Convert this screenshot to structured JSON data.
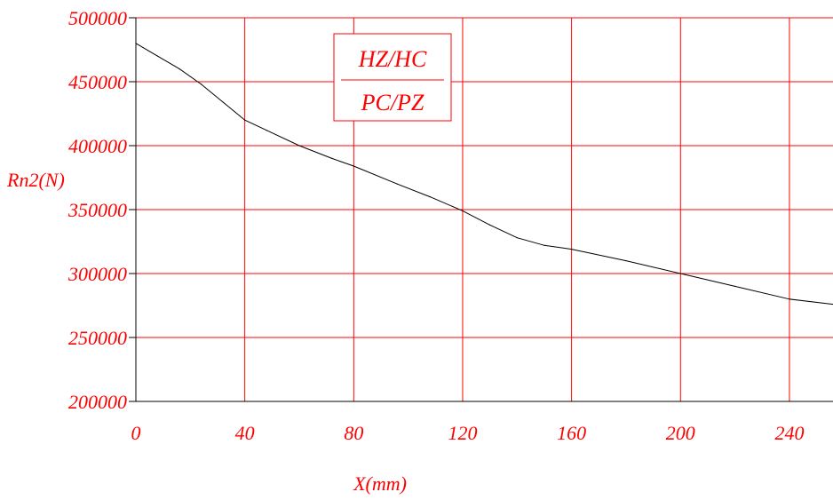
{
  "chart_data": {
    "type": "line",
    "title": "",
    "xlabel": "X(mm)",
    "ylabel": "Rn2(N)",
    "xlim": [
      0,
      256
    ],
    "ylim": [
      200000,
      500000
    ],
    "x_ticks": [
      0,
      40,
      80,
      120,
      160,
      200,
      240
    ],
    "y_ticks": [
      200000,
      250000,
      300000,
      350000,
      400000,
      450000,
      500000
    ],
    "x_tick_labels": [
      "0",
      "40",
      "80",
      "120",
      "160",
      "200",
      "240"
    ],
    "y_tick_labels": [
      "200000",
      "250000",
      "300000",
      "350000",
      "400000",
      "450000",
      "500000"
    ],
    "grid": true,
    "legend": {
      "placement": "top-center",
      "numerator": "HZ/HC",
      "denominator": "PC/PZ"
    },
    "colors": {
      "grid": "#ff0000",
      "axis": "#000000",
      "line": "#000000",
      "text": "#ff0000"
    },
    "series": [
      {
        "x": [
          0,
          8,
          16,
          24,
          32,
          40,
          48,
          60,
          72,
          80,
          96,
          108,
          120,
          130,
          140,
          150,
          160,
          180,
          200,
          220,
          240,
          256
        ],
        "y": [
          480000,
          470000,
          460000,
          448000,
          434000,
          420000,
          412000,
          400000,
          390000,
          384000,
          370000,
          360000,
          349000,
          338000,
          328000,
          322000,
          319000,
          310000,
          300000,
          290000,
          280000,
          276000
        ]
      }
    ]
  }
}
